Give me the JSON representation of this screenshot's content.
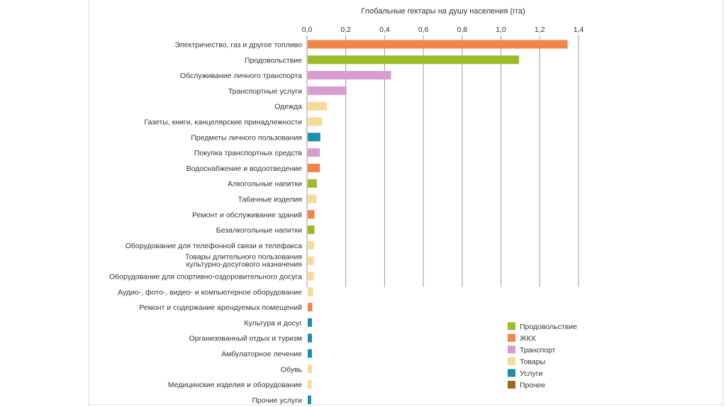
{
  "chart_data": {
    "type": "bar",
    "orientation": "horizontal",
    "title": "Глобальные гектары на душу населения (гга)",
    "xlim": [
      0,
      1.4
    ],
    "ticks": [
      {
        "value": 0.0,
        "label": "0,0"
      },
      {
        "value": 0.2,
        "label": "0,2"
      },
      {
        "value": 0.4,
        "label": "0,4"
      },
      {
        "value": 0.6,
        "label": "0,6"
      },
      {
        "value": 0.8,
        "label": "0,8"
      },
      {
        "value": 1.0,
        "label": "1,0"
      },
      {
        "value": 1.2,
        "label": "1,2"
      },
      {
        "value": 1.4,
        "label": "1,4"
      }
    ],
    "grid": true,
    "legend_position": "bottom-right",
    "legend": [
      {
        "key": "food",
        "label": "Продовольствие",
        "color": "#9BBB2C"
      },
      {
        "key": "housing",
        "label": "ЖКХ",
        "color": "#F0864A"
      },
      {
        "key": "transport",
        "label": "Транспорт",
        "color": "#D79CD0"
      },
      {
        "key": "goods",
        "label": "Товары",
        "color": "#F5DB95"
      },
      {
        "key": "services",
        "label": "Услуги",
        "color": "#1B8FAE"
      },
      {
        "key": "other",
        "label": "Прочее",
        "color": "#9C6A1E"
      }
    ],
    "bars": [
      {
        "label": "Электричество, газ и другое топливо",
        "value": 1.34,
        "group": "housing"
      },
      {
        "label": "Продовольствие",
        "value": 1.09,
        "group": "food"
      },
      {
        "label": "Обслуживание личного транспорта",
        "value": 0.43,
        "group": "transport"
      },
      {
        "label": "Транспортные услуги",
        "value": 0.2,
        "group": "transport"
      },
      {
        "label": "Одежда",
        "value": 0.1,
        "group": "goods"
      },
      {
        "label": "Газеты, книги, канцелярские принадлежности",
        "value": 0.075,
        "group": "goods"
      },
      {
        "label": "Предметы личного пользования",
        "value": 0.065,
        "group": "services"
      },
      {
        "label": "Покупка транспортных средств",
        "value": 0.063,
        "group": "transport"
      },
      {
        "label": "Водоснабжение и водоотведение",
        "value": 0.063,
        "group": "housing"
      },
      {
        "label": "Алкогольные напитки",
        "value": 0.047,
        "group": "food"
      },
      {
        "label": "Табачные изделия",
        "value": 0.045,
        "group": "goods"
      },
      {
        "label": "Ремонт и обслуживание зданий",
        "value": 0.035,
        "group": "housing"
      },
      {
        "label": "Безалкогольные напитки",
        "value": 0.035,
        "group": "food"
      },
      {
        "label": "Оборудование для телефонной связи и телефакса",
        "value": 0.032,
        "group": "goods"
      },
      {
        "label": "Товары длительного пользования культурно-досугового назначения",
        "lines": [
          "Товары длительного пользования",
          "культурно-досугового назначения"
        ],
        "value": 0.032,
        "group": "goods"
      },
      {
        "label": "Оборудование для спортивно-оздоровительного досуга",
        "value": 0.032,
        "group": "goods"
      },
      {
        "label": "Аудио-, фото-, видео- и компьютерное оборудование",
        "value": 0.028,
        "group": "goods"
      },
      {
        "label": "Ремонт и содержание арендуемых помещений",
        "value": 0.024,
        "group": "housing"
      },
      {
        "label": "Культура и досуг",
        "value": 0.022,
        "group": "services"
      },
      {
        "label": "Организованный отдых и туризм",
        "value": 0.022,
        "group": "services"
      },
      {
        "label": "Амбулаторное лечение",
        "value": 0.022,
        "group": "services"
      },
      {
        "label": "Обувь",
        "value": 0.022,
        "group": "goods"
      },
      {
        "label": "Медицинские изделия и оборудование",
        "value": 0.02,
        "group": "goods"
      },
      {
        "label": "Прочие услуги",
        "value": 0.018,
        "group": "services"
      }
    ]
  }
}
